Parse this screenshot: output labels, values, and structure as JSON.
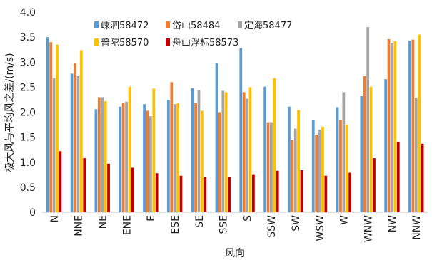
{
  "chart_data": {
    "type": "bar",
    "title": "",
    "xlabel": "风向",
    "ylabel": "极大风与平均风之差/(m/s)",
    "ylim": [
      0,
      4.0
    ],
    "yticks": [
      "0",
      "0.5",
      "1.0",
      "1.5",
      "2.0",
      "2.5",
      "3.0",
      "3.5",
      "4.0"
    ],
    "grid": false,
    "legend_position": "top, inside plot area (two rows)",
    "categories": [
      "N",
      "NNE",
      "NE",
      "ENE",
      "E",
      "ESE",
      "SE",
      "SSE",
      "S",
      "SSW",
      "SW",
      "WSW",
      "W",
      "WNW",
      "NW",
      "NNW"
    ],
    "series": [
      {
        "name": "嵊泗58472",
        "color": "#5b9bd5",
        "values": [
          3.5,
          2.77,
          2.06,
          2.11,
          2.16,
          2.25,
          2.48,
          2.98,
          3.28,
          2.51,
          2.11,
          1.85,
          2.1,
          2.32,
          2.66,
          3.43
        ]
      },
      {
        "name": "岱山58484",
        "color": "#ed7d31",
        "values": [
          3.4,
          2.98,
          2.3,
          2.19,
          2.03,
          2.6,
          2.18,
          2.0,
          2.4,
          1.8,
          1.44,
          1.55,
          1.85,
          2.72,
          3.46,
          3.45
        ]
      },
      {
        "name": "定海58477",
        "color": "#a5a5a5",
        "values": [
          2.68,
          2.72,
          2.3,
          2.21,
          1.92,
          2.16,
          2.44,
          2.43,
          2.27,
          1.8,
          1.67,
          1.65,
          2.4,
          3.7,
          3.38,
          2.28
        ]
      },
      {
        "name": "普陀58570",
        "color": "#ffc000",
        "values": [
          3.35,
          3.24,
          2.22,
          2.51,
          2.47,
          2.18,
          2.03,
          2.4,
          2.5,
          2.68,
          2.04,
          1.71,
          1.75,
          2.51,
          3.42,
          3.55
        ]
      },
      {
        "name": "舟山浮标58573",
        "color": "#c00000",
        "values": [
          1.22,
          1.08,
          0.97,
          0.89,
          0.78,
          0.73,
          0.7,
          0.71,
          0.76,
          0.83,
          0.84,
          0.73,
          0.79,
          1.08,
          1.4,
          1.37
        ]
      }
    ]
  }
}
